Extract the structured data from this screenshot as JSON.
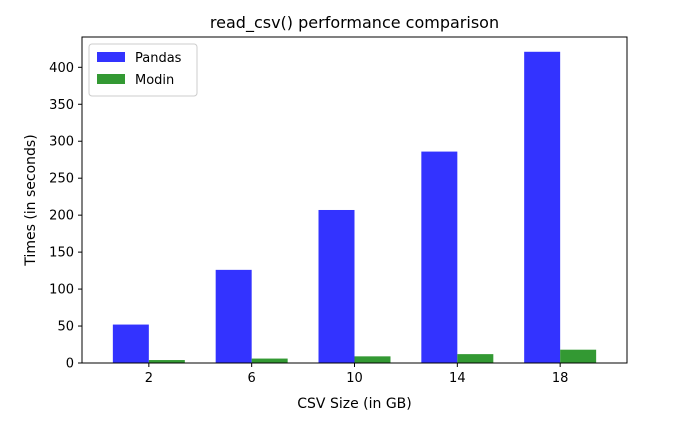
{
  "chart_data": {
    "type": "bar",
    "title": "read_csv() performance comparison",
    "xlabel": "CSV Size (in GB)",
    "ylabel": "Times (in seconds)",
    "categories": [
      "2",
      "6",
      "10",
      "14",
      "18"
    ],
    "series": [
      {
        "name": "Pandas",
        "values": [
          52,
          126,
          207,
          286,
          421
        ],
        "color": "#3333ff"
      },
      {
        "name": "Modin",
        "values": [
          4,
          6,
          9,
          12,
          18
        ],
        "color": "#339933"
      }
    ],
    "ylim": [
      0,
      441
    ],
    "yticks": [
      0,
      50,
      100,
      150,
      200,
      250,
      300,
      350,
      400
    ],
    "grid": false,
    "legend_position": "top-left"
  }
}
